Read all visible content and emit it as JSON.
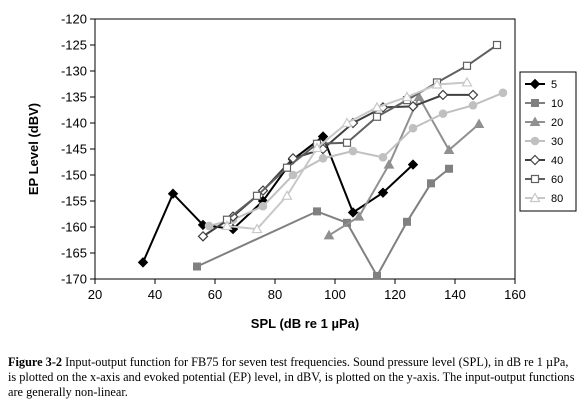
{
  "chart_data": {
    "type": "line",
    "title": "",
    "xlabel": "SPL (dB re 1 µPa)",
    "ylabel": "EP Level (dBV)",
    "xlim": [
      20,
      160
    ],
    "ylim": [
      -170,
      -120
    ],
    "xticks": [
      20,
      40,
      60,
      80,
      100,
      120,
      140,
      160
    ],
    "yticks": [
      -170,
      -165,
      -160,
      -155,
      -150,
      -145,
      -140,
      -135,
      -130,
      -125,
      -120
    ],
    "grid": false,
    "legend_position": "right",
    "series": [
      {
        "name": "5",
        "color": "#000000",
        "marker": "diamond-filled",
        "x": [
          36,
          46,
          56,
          66,
          76,
          86,
          96,
          106,
          116,
          126
        ],
        "y": [
          -166.8,
          -153.6,
          -159.6,
          -160.4,
          -155.0,
          -147.0,
          -142.6,
          -157.2,
          -153.4,
          -148.0
        ]
      },
      {
        "name": "10",
        "color": "#808080",
        "marker": "square-filled",
        "x": [
          54,
          94,
          104,
          114,
          124,
          132,
          138
        ],
        "y": [
          -167.6,
          -157.0,
          -159.2,
          -169.4,
          -159.0,
          -151.6,
          -148.8
        ]
      },
      {
        "name": "20",
        "color": "#909090",
        "marker": "triangle-filled",
        "x": [
          98,
          108,
          118,
          128,
          138,
          148
        ],
        "y": [
          -161.6,
          -158.0,
          -148.0,
          -135.0,
          -145.2,
          -140.2
        ]
      },
      {
        "name": "30",
        "color": "#c0c0c0",
        "marker": "circle-filled",
        "x": [
          58,
          66,
          76,
          86,
          96,
          106,
          116,
          126,
          136,
          146,
          156
        ],
        "y": [
          -159.8,
          -158.6,
          -156.0,
          -150.0,
          -146.8,
          -145.4,
          -146.6,
          -141.0,
          -138.2,
          -136.6,
          -134.2
        ]
      },
      {
        "name": "40",
        "color": "#404040",
        "marker": "diamond-open",
        "x": [
          56,
          66,
          76,
          86,
          96,
          106,
          116,
          126,
          136,
          146
        ],
        "y": [
          -161.8,
          -158.0,
          -153.0,
          -146.8,
          -145.0,
          -140.0,
          -137.0,
          -136.8,
          -134.6,
          -134.6
        ]
      },
      {
        "name": "60",
        "color": "#606060",
        "marker": "square-open",
        "x": [
          64,
          74,
          84,
          94,
          104,
          114,
          124,
          134,
          144,
          154
        ],
        "y": [
          -158.6,
          -154.0,
          -148.6,
          -144.0,
          -143.8,
          -138.8,
          -135.6,
          -132.2,
          -129.0,
          -125.0
        ]
      },
      {
        "name": "80",
        "color": "#c8c8c8",
        "marker": "triangle-open",
        "x": [
          64,
          74,
          84,
          94,
          104,
          114,
          124,
          134,
          144
        ],
        "y": [
          -159.8,
          -160.4,
          -154.0,
          -144.8,
          -140.0,
          -137.0,
          -135.0,
          -132.6,
          -132.2
        ]
      }
    ]
  },
  "caption": {
    "label": "Figure 3-2",
    "text": " Input-output function for FB75 for seven test frequencies.  Sound pressure level (SPL), in dB re 1 µPa, is plotted on the x-axis and evoked potential (EP) level, in dBV, is plotted on the y-axis.  The input-output functions are generally non-linear."
  }
}
